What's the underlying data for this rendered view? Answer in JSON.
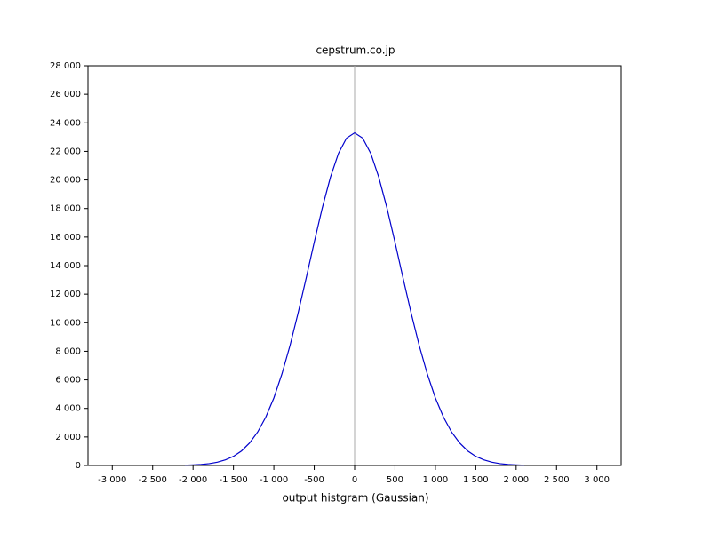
{
  "chart_data": {
    "type": "line",
    "title": "cepstrum.co.jp",
    "x_label": "output histgram (Gaussian)",
    "x": [
      -2100,
      -2000,
      -1900,
      -1800,
      -1700,
      -1600,
      -1500,
      -1400,
      -1300,
      -1200,
      -1100,
      -1000,
      -900,
      -800,
      -700,
      -600,
      -500,
      -400,
      -300,
      -200,
      -100,
      0,
      100,
      200,
      300,
      400,
      500,
      600,
      700,
      800,
      900,
      1000,
      1100,
      1200,
      1300,
      1400,
      1500,
      1600,
      1700,
      1800,
      1900,
      2000,
      2100
    ],
    "values": [
      20,
      40,
      70,
      130,
      230,
      390,
      640,
      1020,
      1580,
      2350,
      3390,
      4730,
      6410,
      8400,
      10670,
      13120,
      15640,
      18050,
      20180,
      21860,
      22930,
      23300,
      22930,
      21860,
      20180,
      18050,
      15640,
      13120,
      10670,
      8400,
      6410,
      4730,
      3390,
      2350,
      1580,
      1020,
      640,
      390,
      230,
      130,
      70,
      40,
      20
    ],
    "color": "#0000cc",
    "xlim": [
      -3300,
      3300
    ],
    "ylim": [
      0,
      28000
    ],
    "xticks": [
      {
        "value": -3000,
        "label": "-3 000"
      },
      {
        "value": -2500,
        "label": "-2 500"
      },
      {
        "value": -2000,
        "label": "-2 000"
      },
      {
        "value": -1500,
        "label": "-1 500"
      },
      {
        "value": -1000,
        "label": "-1 000"
      },
      -500,
      0,
      500,
      {
        "value": 1000,
        "label": "1 000"
      },
      {
        "value": 1500,
        "label": "1 500"
      },
      {
        "value": 2000,
        "label": "2 000"
      },
      {
        "value": 2500,
        "label": "2 500"
      },
      {
        "value": 3000,
        "label": "3 000"
      }
    ],
    "yticks": [
      0,
      {
        "value": 2000,
        "label": "2 000"
      },
      {
        "value": 4000,
        "label": "4 000"
      },
      {
        "value": 6000,
        "label": "6 000"
      },
      {
        "value": 8000,
        "label": "8 000"
      },
      {
        "value": 10000,
        "label": "10 000"
      },
      {
        "value": 12000,
        "label": "12 000"
      },
      {
        "value": 14000,
        "label": "14 000"
      },
      {
        "value": 16000,
        "label": "16 000"
      },
      {
        "value": 18000,
        "label": "18 000"
      },
      {
        "value": 20000,
        "label": "20 000"
      },
      {
        "value": 22000,
        "label": "22 000"
      },
      {
        "value": 24000,
        "label": "24 000"
      },
      {
        "value": 26000,
        "label": "26 000"
      },
      {
        "value": 28000,
        "label": "28 000"
      }
    ]
  }
}
